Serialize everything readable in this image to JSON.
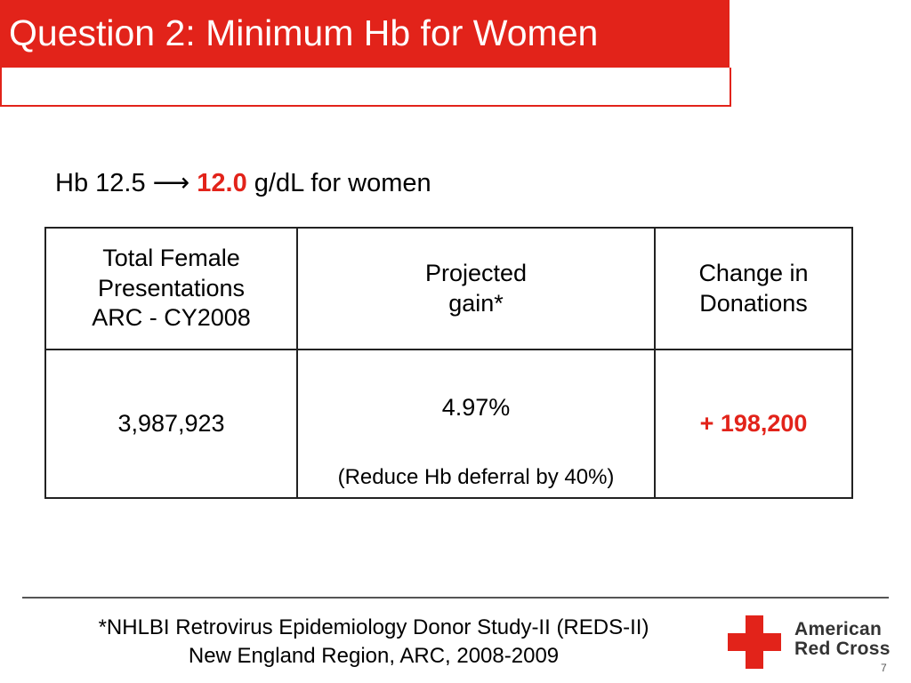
{
  "slide": {
    "title": "Question 2: Minimum Hb for Women",
    "page_number": "7"
  },
  "headline": {
    "prefix": "Hb 12.5",
    "arrow": "⟶",
    "new_value": "12.0",
    "suffix": "g/dL for women"
  },
  "table": {
    "headers": [
      [
        "Total Female",
        "Presentations",
        "ARC - CY2008"
      ],
      [
        "Projected",
        "gain*"
      ],
      [
        "Change in",
        "Donations"
      ]
    ],
    "row": {
      "total": "3,987,923",
      "gain_percent": "4.97%",
      "gain_note": "(Reduce Hb deferral by 40%)",
      "change": "+ 198,200"
    }
  },
  "footnote": {
    "line1": "*NHLBI Retrovirus Epidemiology Donor Study-II (REDS-II)",
    "line2": "New England Region, ARC, 2008-2009"
  },
  "logo": {
    "line1": "American",
    "line2": "Red Cross",
    "icon": "red-cross-icon"
  },
  "colors": {
    "accent": "#e2231a",
    "text": "#000000"
  }
}
